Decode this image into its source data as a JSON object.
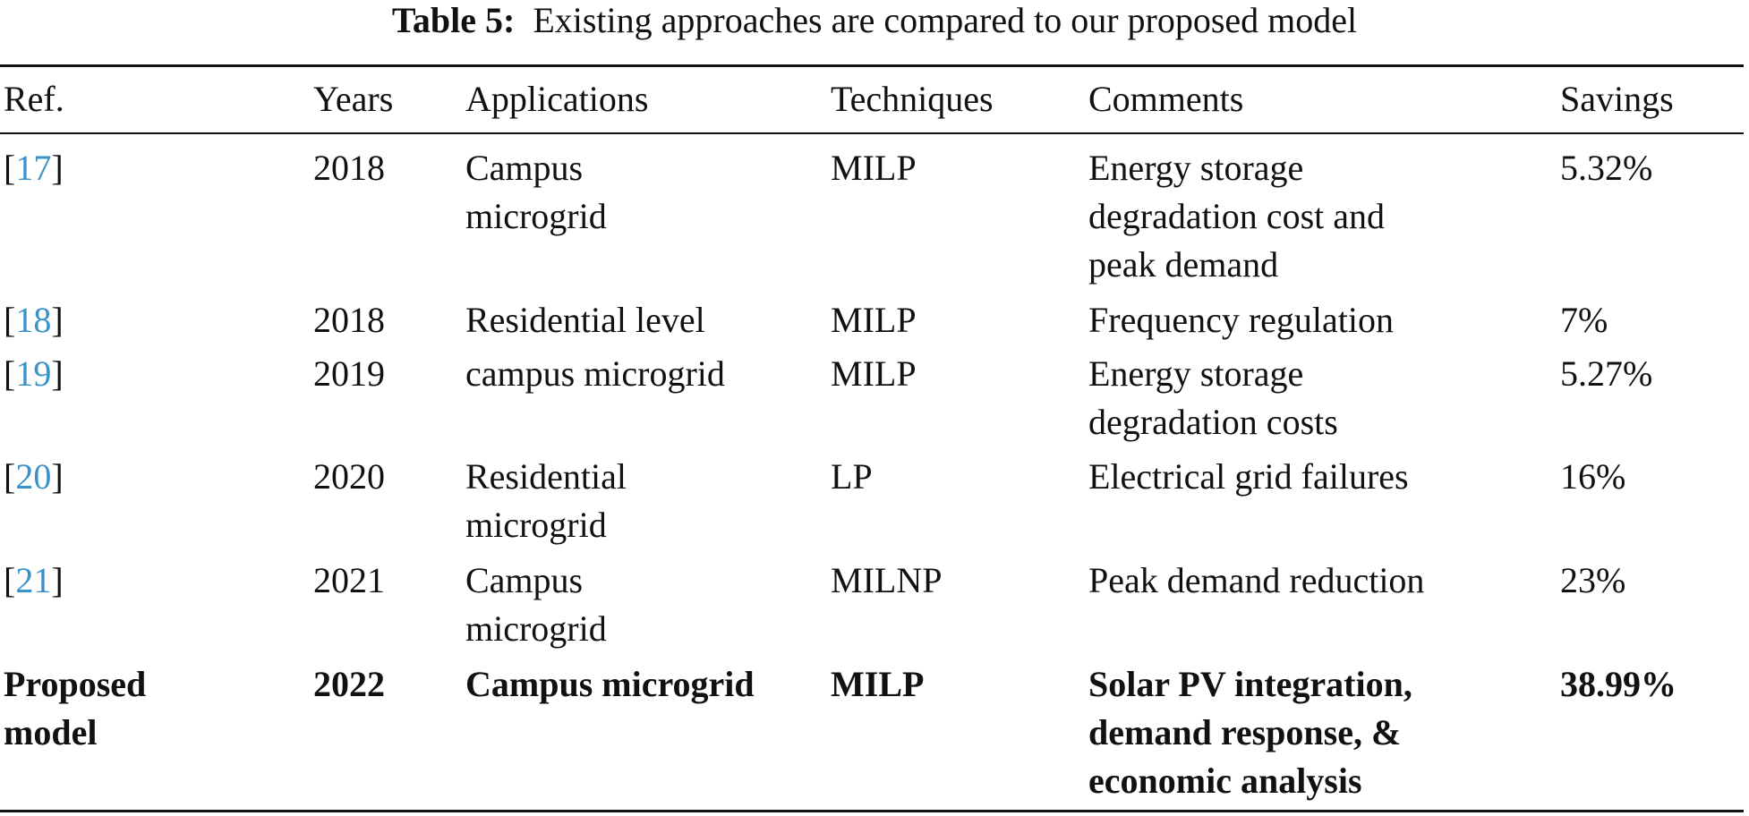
{
  "caption": {
    "label": "Table 5:",
    "text": "Existing approaches are compared to our proposed model"
  },
  "table": {
    "headers": {
      "ref": "Ref.",
      "years": "Years",
      "applications": "Applications",
      "techniques": "Techniques",
      "comments": "Comments",
      "savings": "Savings"
    },
    "rows": [
      {
        "ref_open": "[",
        "ref_num": "17",
        "ref_close": "]",
        "year": "2018",
        "application": [
          "Campus",
          "microgrid"
        ],
        "technique": "MILP",
        "comment": [
          "Energy storage",
          "degradation cost and",
          "peak demand"
        ],
        "savings": "5.32%"
      },
      {
        "ref_open": "[",
        "ref_num": "18",
        "ref_close": "]",
        "year": "2018",
        "application": [
          "Residential level"
        ],
        "technique": "MILP",
        "comment": [
          "Frequency regulation"
        ],
        "savings": "7%"
      },
      {
        "ref_open": "[",
        "ref_num": "19",
        "ref_close": "]",
        "year": "2019",
        "application": [
          "campus microgrid"
        ],
        "technique": "MILP",
        "comment": [
          "Energy storage",
          "degradation costs"
        ],
        "savings": "5.27%"
      },
      {
        "ref_open": "[",
        "ref_num": "20",
        "ref_close": "]",
        "year": "2020",
        "application": [
          "Residential",
          "microgrid"
        ],
        "technique": "LP",
        "comment": [
          "Electrical grid failures"
        ],
        "savings": "16%"
      },
      {
        "ref_open": "[",
        "ref_num": "21",
        "ref_close": "]",
        "year": "2021",
        "application": [
          "Campus",
          "microgrid"
        ],
        "technique": "MILNP",
        "comment": [
          "Peak demand reduction"
        ],
        "savings": "23%"
      },
      {
        "ref": [
          "Proposed",
          "model"
        ],
        "year": "2022",
        "application": [
          "Campus microgrid"
        ],
        "technique": "MILP",
        "comment": [
          "Solar PV integration,",
          "demand response, &",
          "economic analysis"
        ],
        "savings": "38.99%"
      }
    ]
  },
  "colors": {
    "text": "#111111",
    "reference_link": "#3a93c8",
    "rules": "#111111"
  }
}
